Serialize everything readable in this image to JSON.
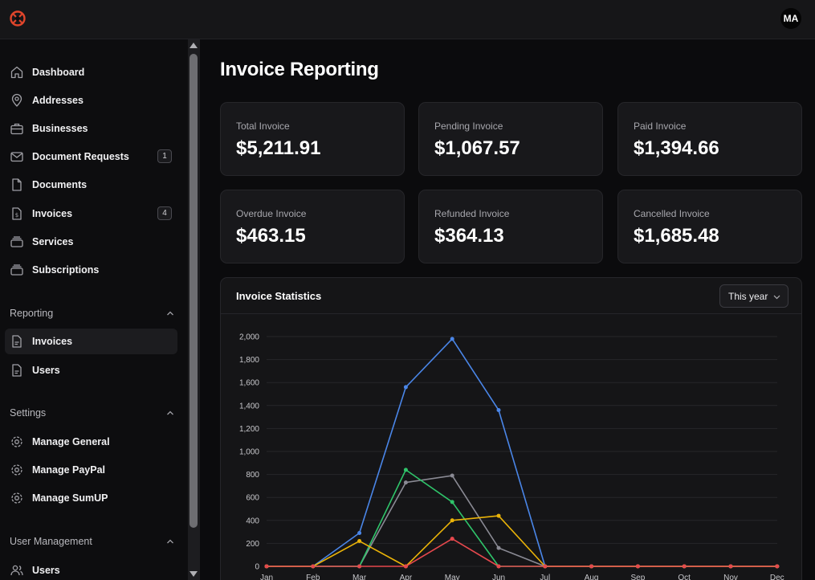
{
  "header": {
    "avatar_initials": "MA",
    "logo_icon": "brand-logo-icon"
  },
  "sidebar": {
    "items": [
      {
        "label": "Dashboard",
        "icon": "home-icon"
      },
      {
        "label": "Addresses",
        "icon": "map-pin-icon"
      },
      {
        "label": "Businesses",
        "icon": "briefcase-icon"
      },
      {
        "label": "Document Requests",
        "icon": "mail-icon",
        "badge": "1"
      },
      {
        "label": "Documents",
        "icon": "file-icon"
      },
      {
        "label": "Invoices",
        "icon": "invoice-icon",
        "badge": "4"
      },
      {
        "label": "Services",
        "icon": "layers-icon"
      },
      {
        "label": "Subscriptions",
        "icon": "layers-icon"
      }
    ],
    "sections": [
      {
        "label": "Reporting",
        "items": [
          {
            "label": "Invoices",
            "icon": "report-icon",
            "active": true
          },
          {
            "label": "Users",
            "icon": "report-icon"
          }
        ]
      },
      {
        "label": "Settings",
        "items": [
          {
            "label": "Manage General",
            "icon": "gear-icon"
          },
          {
            "label": "Manage PayPal",
            "icon": "gear-icon"
          },
          {
            "label": "Manage SumUP",
            "icon": "gear-icon"
          }
        ]
      },
      {
        "label": "User Management",
        "items": [
          {
            "label": "Users",
            "icon": "users-icon"
          }
        ]
      }
    ]
  },
  "main": {
    "title": "Invoice Reporting",
    "cards": [
      {
        "label": "Total Invoice",
        "value": "$5,211.91"
      },
      {
        "label": "Pending Invoice",
        "value": "$1,067.57"
      },
      {
        "label": "Paid Invoice",
        "value": "$1,394.66"
      },
      {
        "label": "Overdue Invoice",
        "value": "$463.15"
      },
      {
        "label": "Refunded Invoice",
        "value": "$364.13"
      },
      {
        "label": "Cancelled Invoice",
        "value": "$1,685.48"
      }
    ],
    "stats": {
      "title": "Invoice Statistics",
      "period": "This year"
    }
  },
  "chart_data": {
    "type": "line",
    "categories": [
      "Jan",
      "Feb",
      "Mar",
      "Apr",
      "May",
      "Jun",
      "Jul",
      "Aug",
      "Sep",
      "Oct",
      "Nov",
      "Dec"
    ],
    "y_ticks": [
      "0",
      "200",
      "400",
      "600",
      "800",
      "1,000",
      "1,200",
      "1,400",
      "1,600",
      "1,800",
      "2,000"
    ],
    "ylim": [
      0,
      2000
    ],
    "grid": true,
    "series": [
      {
        "color": "#4a86e8",
        "values": [
          0,
          0,
          290,
          1560,
          1980,
          1360,
          0,
          0,
          0,
          0,
          0,
          0
        ]
      },
      {
        "color": "#8a8a94",
        "values": [
          0,
          0,
          0,
          730,
          790,
          160,
          0,
          0,
          0,
          0,
          0,
          0
        ]
      },
      {
        "color": "#2fc46a",
        "values": [
          0,
          0,
          0,
          840,
          560,
          0,
          0,
          0,
          0,
          0,
          0,
          0
        ]
      },
      {
        "color": "#eab308",
        "values": [
          0,
          0,
          220,
          0,
          400,
          440,
          0,
          0,
          0,
          0,
          0,
          0
        ]
      },
      {
        "color": "#e5484d",
        "values": [
          0,
          0,
          0,
          0,
          240,
          0,
          0,
          0,
          0,
          0,
          0,
          0
        ]
      }
    ]
  }
}
